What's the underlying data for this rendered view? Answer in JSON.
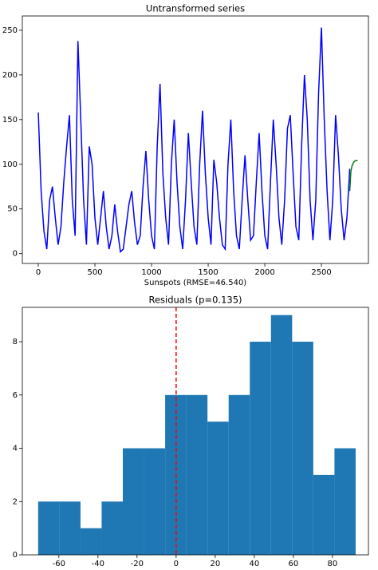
{
  "chart_data": [
    {
      "type": "line",
      "title": "Untransformed series",
      "xlabel": "Sunspots (RMSE=46.540)",
      "xlim": [
        -141,
        2915
      ],
      "ylim": [
        -11,
        266
      ],
      "xticks": [
        0,
        500,
        1000,
        1500,
        2000,
        2500
      ],
      "yticks": [
        0,
        50,
        100,
        150,
        200,
        250
      ],
      "series": [
        {
          "color": "#0000ff",
          "x": [
            0,
            25,
            50,
            75,
            100,
            125,
            150,
            175,
            200,
            225,
            250,
            275,
            300,
            325,
            350,
            375,
            400,
            425,
            450,
            475,
            500,
            525,
            550,
            575,
            600,
            625,
            650,
            675,
            700,
            725,
            750,
            775,
            800,
            825,
            850,
            875,
            900,
            925,
            950,
            975,
            1000,
            1025,
            1050,
            1075,
            1100,
            1125,
            1150,
            1175,
            1200,
            1225,
            1250,
            1275,
            1300,
            1325,
            1350,
            1375,
            1400,
            1425,
            1450,
            1475,
            1500,
            1525,
            1550,
            1575,
            1600,
            1625,
            1650,
            1675,
            1700,
            1725,
            1750,
            1775,
            1800,
            1825,
            1850,
            1875,
            1900,
            1925,
            1950,
            1975,
            2000,
            2025,
            2050,
            2075,
            2100,
            2125,
            2150,
            2175,
            2200,
            2225,
            2250,
            2275,
            2300,
            2325,
            2350,
            2375,
            2400,
            2425,
            2450,
            2475,
            2500,
            2525,
            2550,
            2575,
            2600,
            2625,
            2650,
            2675,
            2700,
            2725,
            2750
          ],
          "values": [
            158,
            70,
            25,
            5,
            60,
            75,
            40,
            10,
            30,
            80,
            120,
            155,
            60,
            20,
            238,
            150,
            60,
            10,
            120,
            100,
            40,
            10,
            40,
            70,
            30,
            5,
            20,
            55,
            25,
            2,
            5,
            30,
            55,
            70,
            35,
            10,
            20,
            75,
            115,
            60,
            20,
            5,
            120,
            190,
            90,
            40,
            10,
            100,
            150,
            80,
            30,
            5,
            60,
            135,
            80,
            30,
            10,
            100,
            160,
            90,
            40,
            10,
            105,
            80,
            40,
            10,
            5,
            100,
            150,
            70,
            20,
            5,
            60,
            110,
            60,
            15,
            20,
            80,
            135,
            70,
            20,
            5,
            80,
            150,
            100,
            40,
            10,
            60,
            140,
            155,
            90,
            30,
            15,
            120,
            200,
            150,
            60,
            15,
            60,
            180,
            253,
            150,
            70,
            15,
            60,
            155,
            110,
            50,
            15,
            40,
            95
          ]
        },
        {
          "color": "#008000",
          "x": [
            2750,
            2760,
            2770,
            2780,
            2790,
            2800,
            2810,
            2820
          ],
          "values": [
            70,
            92,
            98,
            101,
            103,
            104,
            104,
            104
          ]
        }
      ]
    },
    {
      "type": "histogram",
      "title": "Residuals (p=0.135)",
      "color": "#1f77b4",
      "xlim": [
        -78.7,
        98.4
      ],
      "ylim": [
        0,
        9.29
      ],
      "xticks": [
        -60,
        -40,
        -20,
        0,
        20,
        40,
        60,
        80
      ],
      "yticks": [
        0,
        2,
        4,
        6,
        8
      ],
      "bins": [
        -70.6,
        -59.77,
        -48.94,
        -38.11,
        -27.28,
        -16.45,
        -5.62,
        5.21,
        16.04,
        26.87,
        37.7,
        48.53,
        59.36,
        70.19,
        81.02,
        91.85
      ],
      "counts": [
        2,
        2,
        1,
        2,
        4,
        4,
        6,
        6,
        5,
        6,
        8,
        9,
        8,
        3,
        4
      ],
      "vline": 0,
      "vline_color": "#ff0000"
    }
  ]
}
